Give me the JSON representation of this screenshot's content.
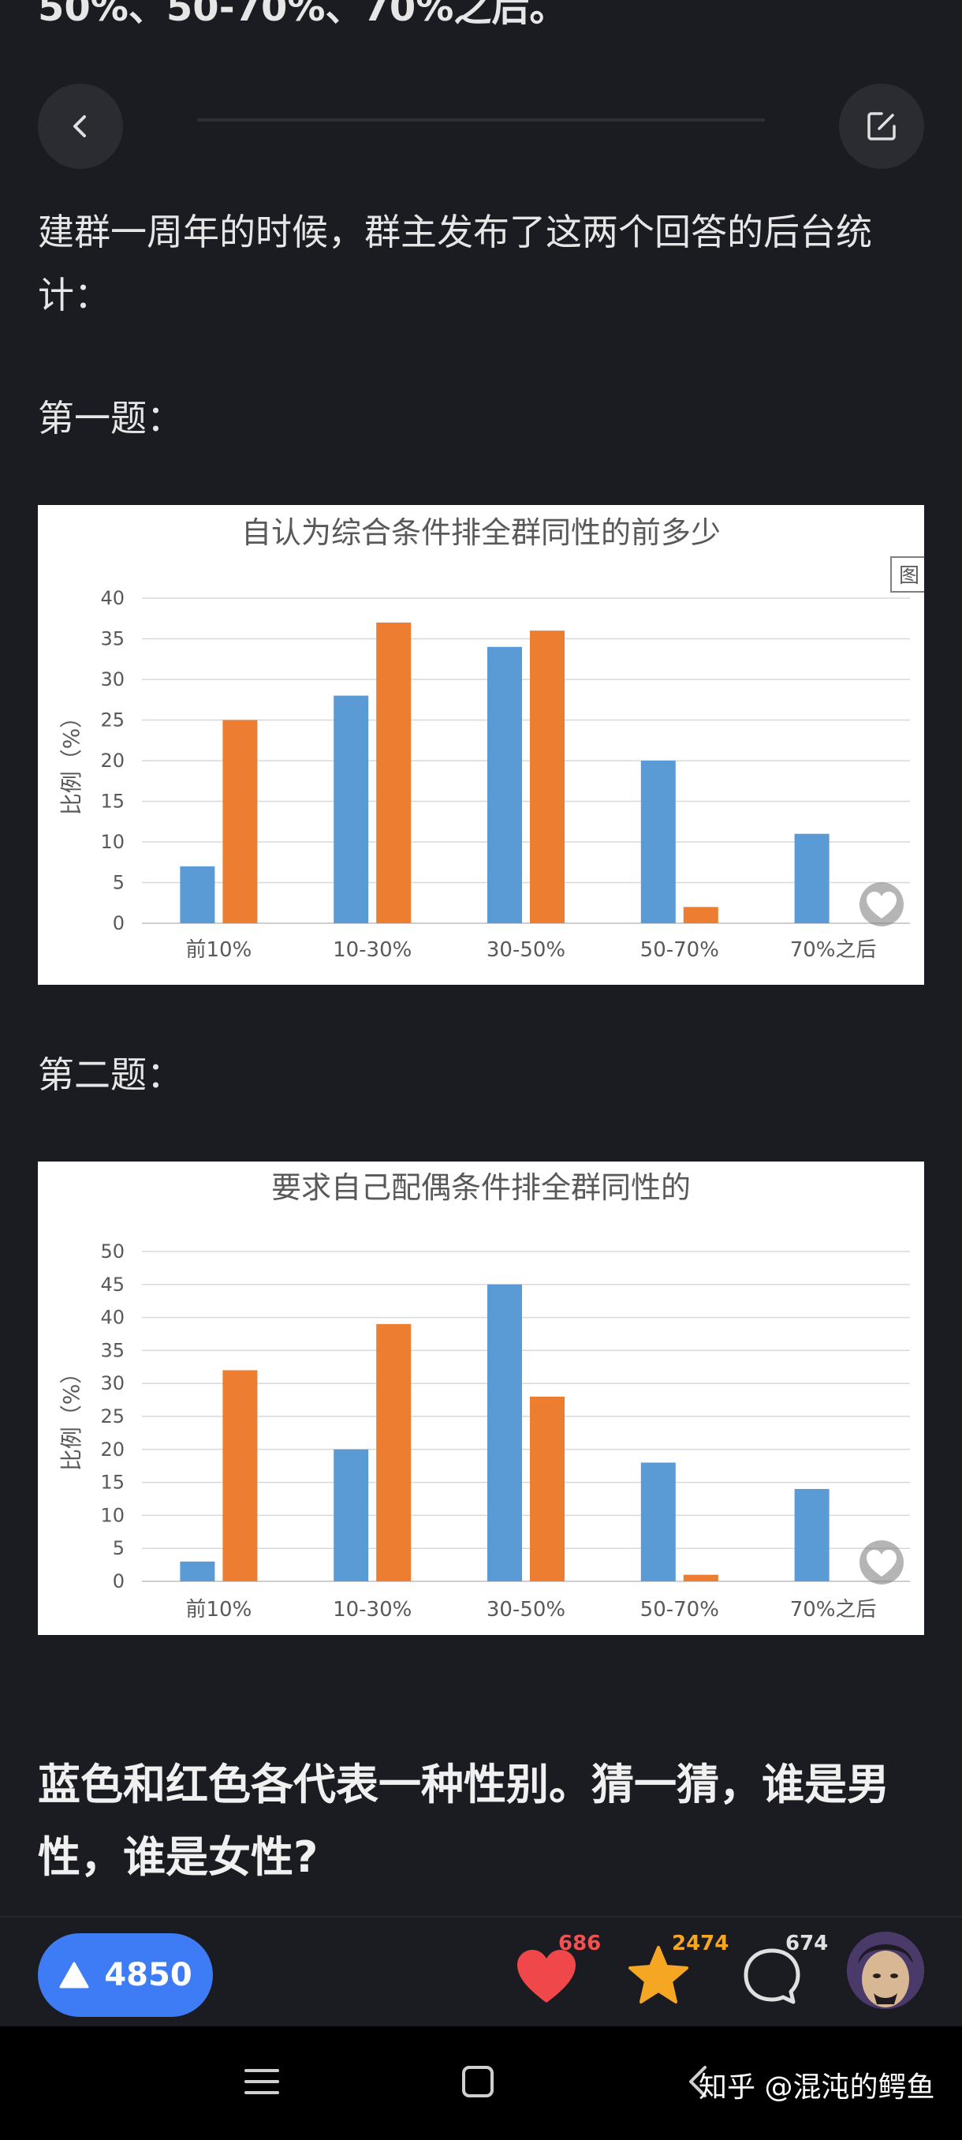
{
  "article": {
    "top_partial_text": "50%、50-70%、70%之后。",
    "paragraph1": "建群一周年的时候，群主发布了这两个回答的后台统计：",
    "q1_label": "第一题：",
    "q2_label": "第二题：",
    "question": "蓝色和红色各代表一种性别。猜一猜，谁是男性，谁是女性?"
  },
  "chart_data": [
    {
      "type": "bar",
      "title": "自认为综合条件排全群同性的前多少",
      "ylabel": "比例（%）",
      "categories": [
        "前10%",
        "10-30%",
        "30-50%",
        "50-70%",
        "70%之后"
      ],
      "series": [
        {
          "color": "#5b9bd5",
          "values": [
            7,
            28,
            34,
            20,
            11
          ]
        },
        {
          "color": "#ed7d31",
          "values": [
            25,
            37,
            36,
            2,
            0
          ]
        }
      ],
      "ylim": [
        0,
        40
      ],
      "yticks": [
        0,
        5,
        10,
        15,
        20,
        25,
        30,
        35,
        40
      ],
      "grid": true,
      "overlay_tag": "图"
    },
    {
      "type": "bar",
      "title": "要求自己配偶条件排全群同性的",
      "ylabel": "比例（%）",
      "categories": [
        "前10%",
        "10-30%",
        "30-50%",
        "50-70%",
        "70%之后"
      ],
      "series": [
        {
          "color": "#5b9bd5",
          "values": [
            3,
            20,
            45,
            18,
            14
          ]
        },
        {
          "color": "#ed7d31",
          "values": [
            32,
            39,
            28,
            1,
            0
          ]
        }
      ],
      "ylim": [
        0,
        50
      ],
      "yticks": [
        0,
        5,
        10,
        15,
        20,
        25,
        30,
        35,
        40,
        45,
        50
      ],
      "grid": true
    }
  ],
  "actions": {
    "upvote_count": "4850",
    "like_count": "686",
    "favorite_count": "2474",
    "comment_count": "674"
  },
  "colors": {
    "upvote_bg": "#3d7cf5",
    "like": "#f0474b",
    "favorite": "#f5a623",
    "like_count_color": "#f05252",
    "favorite_count_color": "#f5a623"
  },
  "watermark": "知乎 @混沌的鳄鱼"
}
